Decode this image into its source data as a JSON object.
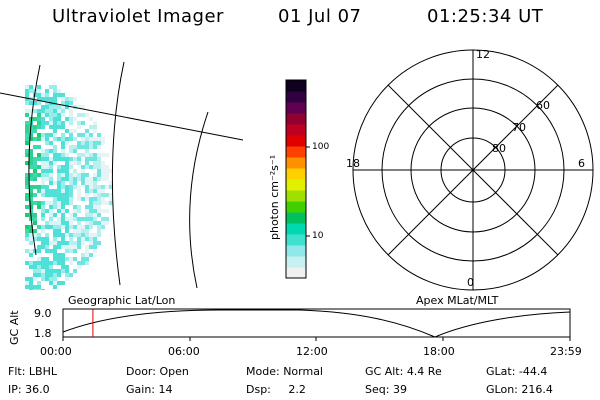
{
  "header": {
    "instrument": "Ultraviolet Imager",
    "date": "01 Jul 07",
    "time": "01:25:34 UT"
  },
  "colorbar": {
    "unit_label": "photon cm⁻²s⁻¹",
    "ticks": [
      "100",
      "10"
    ],
    "colors": [
      "#f0f0f0",
      "#c8f0f0",
      "#90e8e8",
      "#40e0d0",
      "#00d8b0",
      "#00c060",
      "#40d000",
      "#a0e000",
      "#e0f000",
      "#ffd000",
      "#ff9000",
      "#ff4000",
      "#e00000",
      "#c00020",
      "#900030",
      "#600050",
      "#300040",
      "#100020"
    ]
  },
  "polar": {
    "labels": {
      "top": "12",
      "left": "18",
      "right": "6",
      "bottom": "0"
    },
    "lat_labels": [
      "60",
      "70",
      "80"
    ]
  },
  "orbit": {
    "left_caption": "Geographic Lat/Lon",
    "right_caption": "Apex MLat/MLT",
    "axis_label": "GC Alt",
    "y_ticks": [
      "9.0",
      "1.8"
    ],
    "x_ticks": [
      "00:00",
      "06:00",
      "12:00",
      "18:00",
      "23:59"
    ],
    "current_fraction": 0.059
  },
  "status": {
    "row1": [
      {
        "key": "Flt:",
        "value": "LBHL"
      },
      {
        "key": "Door:",
        "value": "Open"
      },
      {
        "key": "Mode:",
        "value": "Normal"
      },
      {
        "key": "GC Alt:",
        "value": "4.4 Re"
      },
      {
        "key": "GLat:",
        "value": "-44.4"
      }
    ],
    "row2": [
      {
        "key": "IP:",
        "value": "36.0"
      },
      {
        "key": "Gain:",
        "value": "14"
      },
      {
        "key": "Dsp:",
        "value": "2.2"
      },
      {
        "key": "Seq:",
        "value": "39"
      },
      {
        "key": "GLon:",
        "value": "216.4"
      }
    ]
  }
}
